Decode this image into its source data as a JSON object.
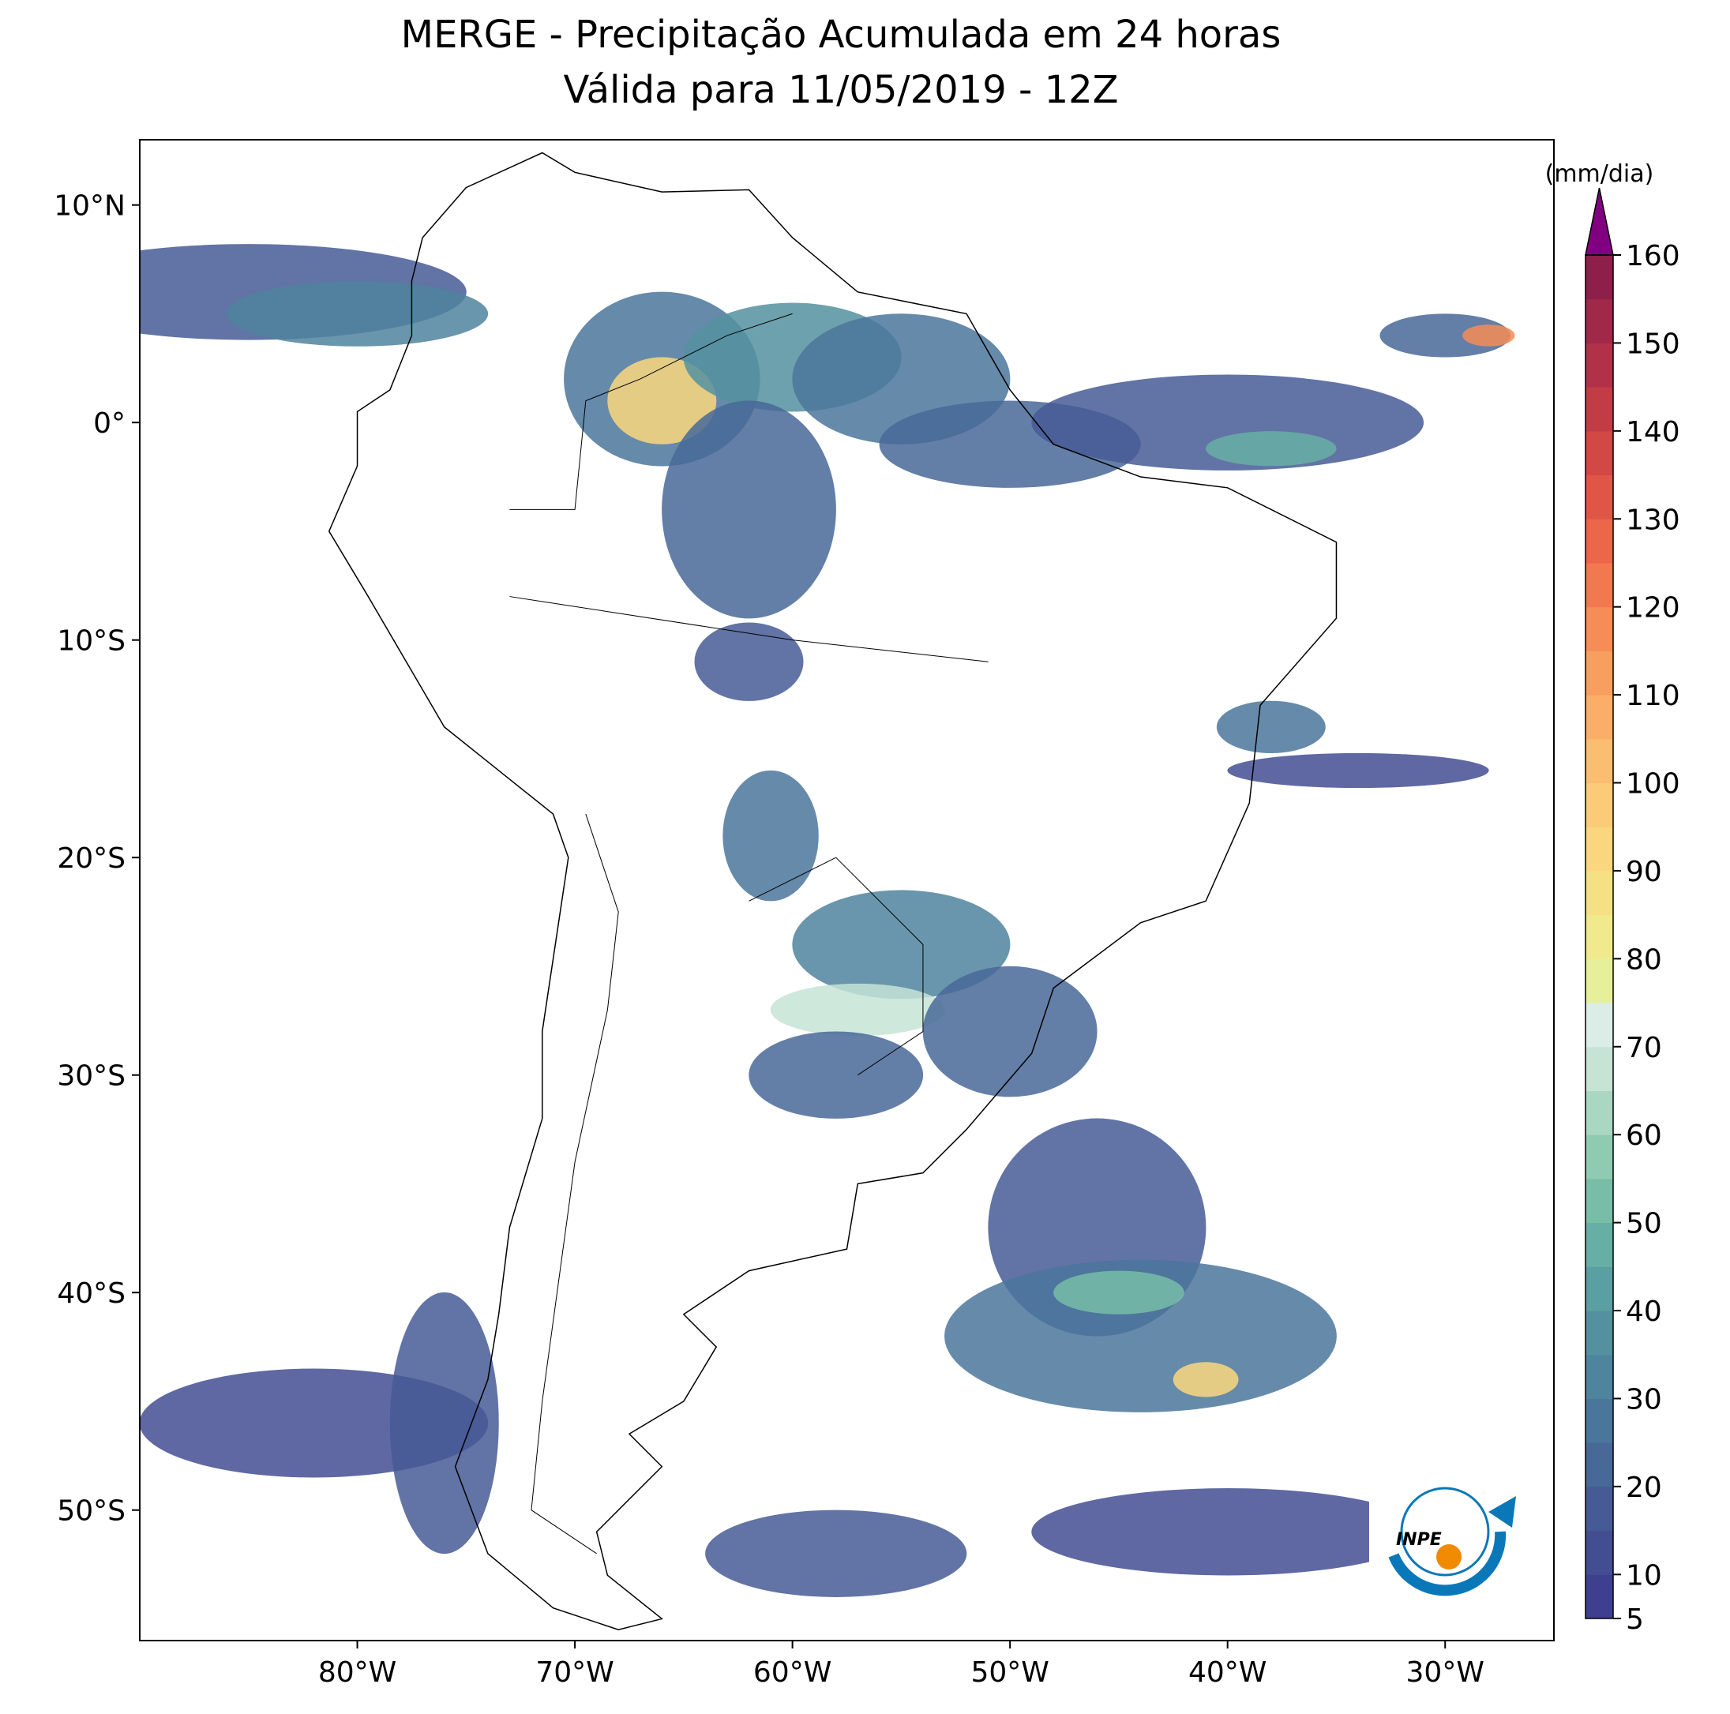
{
  "title": "MERGE - Precipitação Acumulada em 24 horas",
  "subtitle": "Válida para 11/05/2019 - 12Z",
  "map": {
    "xlim": [
      -90,
      -25
    ],
    "ylim": [
      -56,
      13
    ],
    "xticks": [
      {
        "value": -80,
        "label": "80°W"
      },
      {
        "value": -70,
        "label": "70°W"
      },
      {
        "value": -60,
        "label": "60°W"
      },
      {
        "value": -50,
        "label": "50°W"
      },
      {
        "value": -40,
        "label": "40°W"
      },
      {
        "value": -30,
        "label": "30°W"
      }
    ],
    "yticks": [
      {
        "value": 10,
        "label": "10°N"
      },
      {
        "value": 0,
        "label": "0°"
      },
      {
        "value": -10,
        "label": "10°S"
      },
      {
        "value": -20,
        "label": "20°S"
      },
      {
        "value": -30,
        "label": "30°S"
      },
      {
        "value": -40,
        "label": "40°S"
      },
      {
        "value": -50,
        "label": "50°S"
      }
    ]
  },
  "colorbar": {
    "label": "(mm/dia)",
    "lim": [
      5,
      160
    ],
    "ticks": [
      5,
      10,
      20,
      30,
      40,
      50,
      60,
      70,
      80,
      90,
      100,
      110,
      120,
      130,
      140,
      150,
      160
    ],
    "colors": [
      "#3f3f8f",
      "#434d92",
      "#465a95",
      "#486898",
      "#4b769b",
      "#4f849e",
      "#5391a0",
      "#5aa0a2",
      "#67afa5",
      "#78bda8",
      "#8fcbb2",
      "#aad7c2",
      "#c6e4d6",
      "#dcede8",
      "#e6f09a",
      "#f0ea8c",
      "#f6e084",
      "#fad77f",
      "#fbcb78",
      "#fbbd70",
      "#faae67",
      "#f89e5f",
      "#f68c56",
      "#f2794f",
      "#eb6749",
      "#e05646",
      "#d24845",
      "#c23c46",
      "#b13248",
      "#a02849",
      "#8e1f4b"
    ],
    "extend_color": "#800080"
  },
  "logo_text": "INPE"
}
